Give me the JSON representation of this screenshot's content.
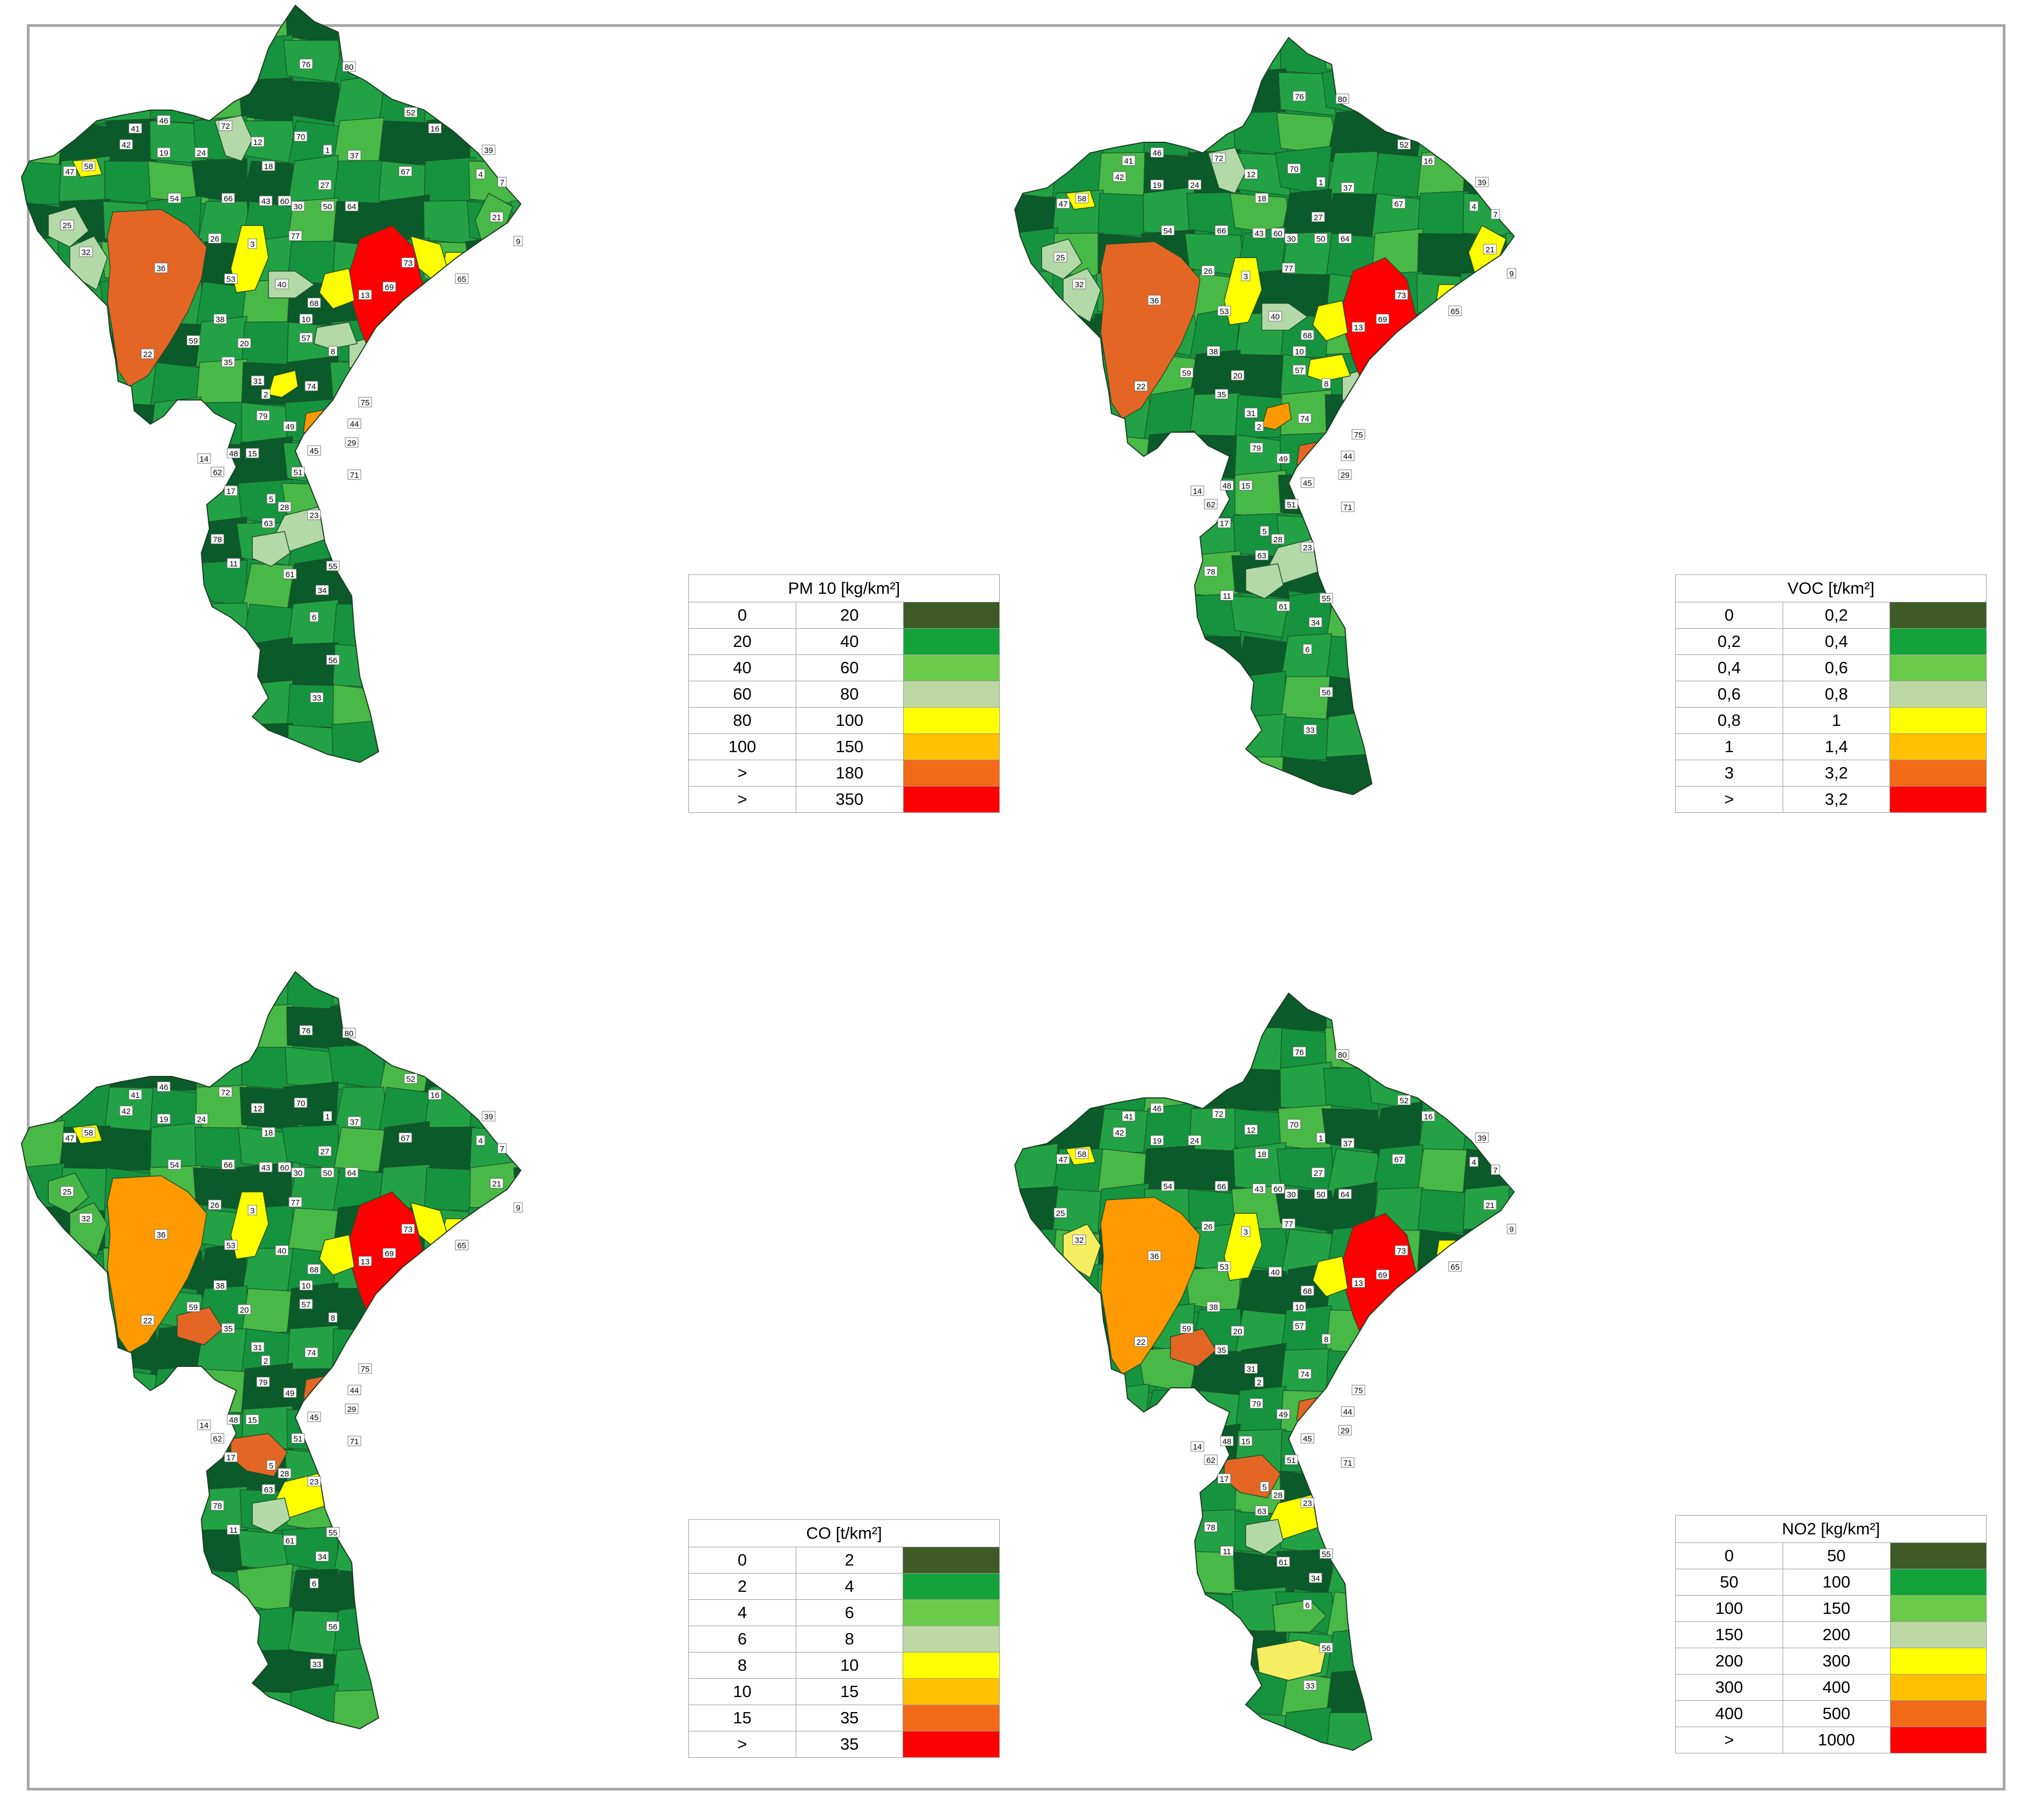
{
  "palette": [
    "#3f5b25",
    "#14a33a",
    "#6cca4b",
    "#bcd9a4",
    "#ffff00",
    "#ffc000",
    "#f26a18",
    "#ff0000"
  ],
  "shade": {
    "dark": "#0b5a2a",
    "mid": "#15933f",
    "mid2": "#22a244",
    "light": "#48b847",
    "pale": "#b2d9a7",
    "yellow": "#ffff00",
    "yellowPale": "#f5ee60",
    "orange": "#ff9900",
    "orangeDark": "#e36624",
    "red": "#ff0000"
  },
  "panels": [
    {
      "id": "pm10",
      "legend_title": "PM 10 [kg/km²]",
      "legend_rows": [
        [
          "0",
          "20"
        ],
        [
          "20",
          "40"
        ],
        [
          "40",
          "60"
        ],
        [
          "60",
          "80"
        ],
        [
          "80",
          "100"
        ],
        [
          "100",
          "150"
        ],
        [
          ">",
          "180"
        ],
        [
          ">",
          "350"
        ]
      ],
      "overrides": {
        "36": "orangeDark",
        "13": "red",
        "71": "red",
        "45": "orange",
        "29": "orange",
        "53": "yellow",
        "68": "yellow",
        "73": "yellow",
        "65": "yellow",
        "2": "yellow",
        "58": "yellow",
        "25": "pale",
        "32": "pale",
        "72": "pale",
        "40": "pale",
        "8": "pale",
        "75": "pale",
        "44": "pale",
        "57": "pale",
        "23": "pale",
        "63": "pale",
        "21": "light"
      }
    },
    {
      "id": "voc",
      "legend_title": "VOC [t/km²]",
      "legend_rows": [
        [
          "0",
          "0,2"
        ],
        [
          "0,2",
          "0,4"
        ],
        [
          "0,4",
          "0,6"
        ],
        [
          "0,6",
          "0,8"
        ],
        [
          "0,8",
          "1"
        ],
        [
          "1",
          "1,4"
        ],
        [
          "3",
          "3,2"
        ],
        [
          ">",
          "3,2"
        ]
      ],
      "overrides": {
        "36": "orangeDark",
        "13": "red",
        "71": "red",
        "45": "orangeDark",
        "29": "orangeDark",
        "2": "orange",
        "53": "yellow",
        "68": "yellow",
        "57": "yellow",
        "21": "yellow",
        "65": "yellow",
        "78": "yellow",
        "58": "yellow",
        "25": "pale",
        "32": "pale",
        "72": "pale",
        "40": "pale",
        "8": "pale",
        "75": "pale",
        "44": "pale",
        "23": "pale",
        "63": "pale"
      }
    },
    {
      "id": "co",
      "legend_title": "CO [t/km²]",
      "legend_rows": [
        [
          "0",
          "2"
        ],
        [
          "2",
          "4"
        ],
        [
          "4",
          "6"
        ],
        [
          "6",
          "8"
        ],
        [
          "8",
          "10"
        ],
        [
          "10",
          "15"
        ],
        [
          "15",
          "35"
        ],
        [
          ">",
          "35"
        ]
      ],
      "overrides": {
        "36": "orange",
        "13": "red",
        "59": "orangeDark",
        "17": "orangeDark",
        "45": "orangeDark",
        "29": "orangeDark",
        "71": "orangeDark",
        "9": "orangeDark",
        "53": "yellow",
        "68": "yellow",
        "65": "yellow",
        "73": "yellow",
        "75": "yellow",
        "23": "yellow",
        "58": "yellow",
        "44": "pale",
        "63": "pale",
        "32": "light",
        "25": "light"
      }
    },
    {
      "id": "no2",
      "legend_title": "NO2 [kg/km²]",
      "legend_rows": [
        [
          "0",
          "50"
        ],
        [
          "50",
          "100"
        ],
        [
          "100",
          "150"
        ],
        [
          "150",
          "200"
        ],
        [
          "200",
          "300"
        ],
        [
          "300",
          "400"
        ],
        [
          "400",
          "500"
        ],
        [
          ">",
          "1000"
        ]
      ],
      "overrides": {
        "36": "orange",
        "13": "red",
        "59": "orangeDark",
        "17": "orangeDark",
        "45": "orangeDark",
        "29": "orangeDark",
        "71": "orangeDark",
        "9": "orangeDark",
        "32": "yellowPale",
        "6": "yellowPale",
        "53": "yellow",
        "68": "yellow",
        "65": "yellow",
        "75": "yellow",
        "44": "yellow",
        "23": "yellow",
        "58": "yellow",
        "63": "pale",
        "34": "light"
      }
    }
  ],
  "municipalities": [
    {
      "id": "76",
      "c": "dark"
    },
    {
      "id": "80",
      "c": "dark"
    },
    {
      "id": "52",
      "c": "mid"
    },
    {
      "id": "16",
      "c": "mid"
    },
    {
      "id": "39",
      "c": "dark"
    },
    {
      "id": "4",
      "c": "dark"
    },
    {
      "id": "7",
      "c": "dark"
    },
    {
      "id": "70",
      "c": "dark"
    },
    {
      "id": "1",
      "c": "dark"
    },
    {
      "id": "37",
      "c": "dark"
    },
    {
      "id": "67",
      "c": "mid"
    },
    {
      "id": "27",
      "c": "dark"
    },
    {
      "id": "50",
      "c": "dark"
    },
    {
      "id": "64",
      "c": "dark"
    },
    {
      "id": "30",
      "c": "mid"
    },
    {
      "id": "21",
      "c": "mid"
    },
    {
      "id": "9",
      "c": "dark"
    },
    {
      "id": "46",
      "c": "dark"
    },
    {
      "id": "41",
      "c": "mid"
    },
    {
      "id": "42",
      "c": "dark"
    },
    {
      "id": "58",
      "c": "mid"
    },
    {
      "id": "19",
      "c": "mid"
    },
    {
      "id": "24",
      "c": "mid"
    },
    {
      "id": "72",
      "c": "mid"
    },
    {
      "id": "12",
      "c": "mid"
    },
    {
      "id": "18",
      "c": "mid"
    },
    {
      "id": "47",
      "c": "mid2"
    },
    {
      "id": "25",
      "c": "mid2"
    },
    {
      "id": "32",
      "c": "mid2"
    },
    {
      "id": "54",
      "c": "dark"
    },
    {
      "id": "66",
      "c": "dark"
    },
    {
      "id": "43",
      "c": "mid"
    },
    {
      "id": "60",
      "c": "dark"
    },
    {
      "id": "36",
      "c": "mid"
    },
    {
      "id": "26",
      "c": "mid"
    },
    {
      "id": "3",
      "c": "dark"
    },
    {
      "id": "77",
      "c": "mid"
    },
    {
      "id": "53",
      "c": "mid"
    },
    {
      "id": "40",
      "c": "mid"
    },
    {
      "id": "68",
      "c": "mid"
    },
    {
      "id": "13",
      "c": "mid"
    },
    {
      "id": "73",
      "c": "mid"
    },
    {
      "id": "65",
      "c": "mid"
    },
    {
      "id": "69",
      "c": "mid2"
    },
    {
      "id": "38",
      "c": "mid"
    },
    {
      "id": "10",
      "c": "mid"
    },
    {
      "id": "59",
      "c": "mid"
    },
    {
      "id": "22",
      "c": "mid2"
    },
    {
      "id": "57",
      "c": "mid"
    },
    {
      "id": "20",
      "c": "mid"
    },
    {
      "id": "35",
      "c": "dark"
    },
    {
      "id": "8",
      "c": "mid"
    },
    {
      "id": "31",
      "c": "mid"
    },
    {
      "id": "2",
      "c": "mid"
    },
    {
      "id": "74",
      "c": "mid"
    },
    {
      "id": "79",
      "c": "mid"
    },
    {
      "id": "75",
      "c": "mid"
    },
    {
      "id": "49",
      "c": "mid"
    },
    {
      "id": "44",
      "c": "mid"
    },
    {
      "id": "29",
      "c": "mid"
    },
    {
      "id": "14",
      "c": "dark"
    },
    {
      "id": "48",
      "c": "mid"
    },
    {
      "id": "15",
      "c": "mid"
    },
    {
      "id": "45",
      "c": "mid"
    },
    {
      "id": "62",
      "c": "mid"
    },
    {
      "id": "51",
      "c": "dark"
    },
    {
      "id": "71",
      "c": "mid"
    },
    {
      "id": "17",
      "c": "mid"
    },
    {
      "id": "5",
      "c": "mid"
    },
    {
      "id": "28",
      "c": "mid"
    },
    {
      "id": "63",
      "c": "mid"
    },
    {
      "id": "23",
      "c": "mid"
    },
    {
      "id": "78",
      "c": "dark"
    },
    {
      "id": "11",
      "c": "mid"
    },
    {
      "id": "61",
      "c": "dark"
    },
    {
      "id": "55",
      "c": "mid"
    },
    {
      "id": "34",
      "c": "mid"
    },
    {
      "id": "6",
      "c": "mid"
    },
    {
      "id": "56",
      "c": "dark"
    },
    {
      "id": "33",
      "c": "mid"
    }
  ]
}
